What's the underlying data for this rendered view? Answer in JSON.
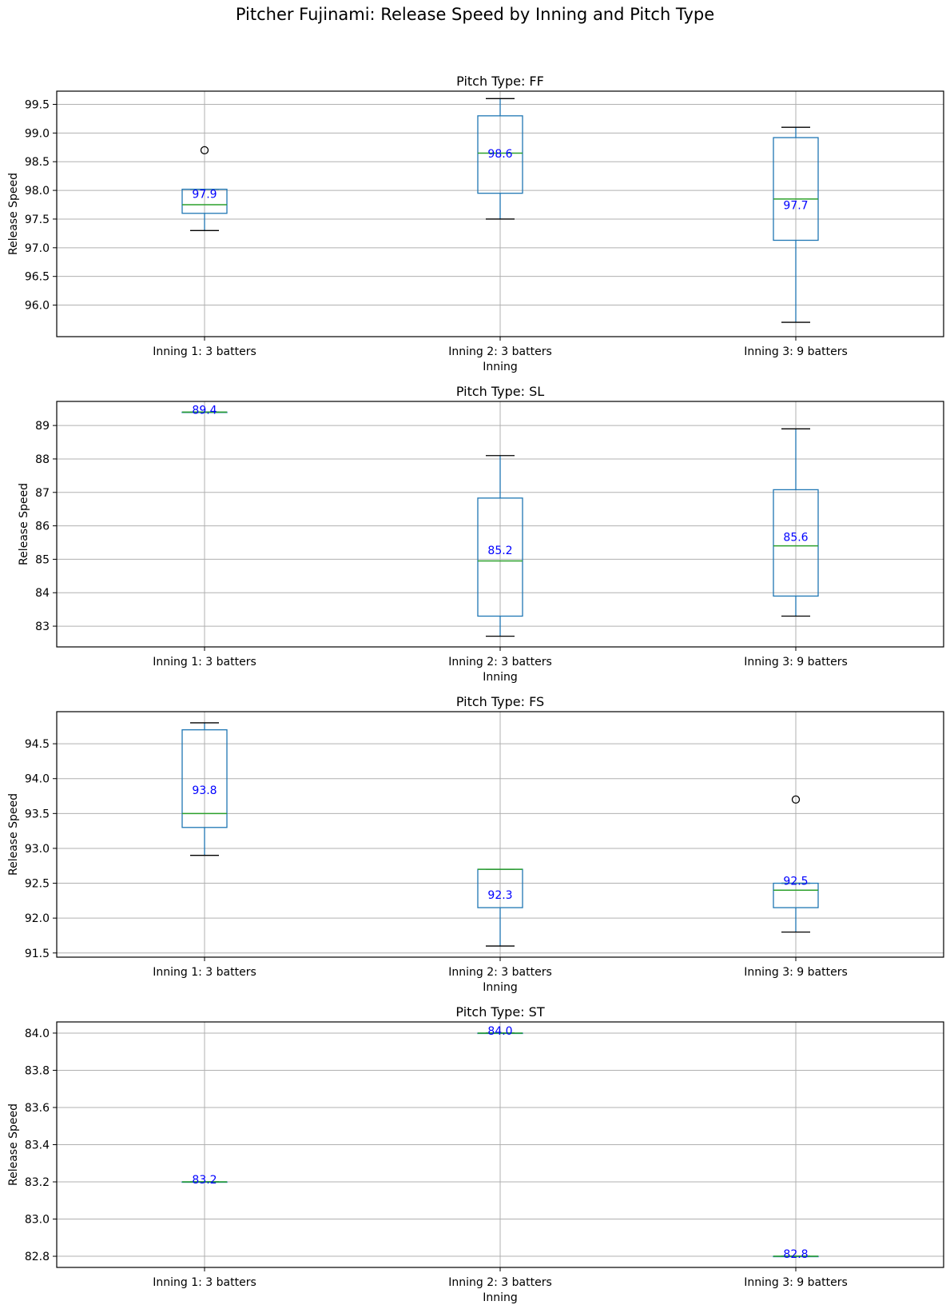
{
  "chart_data": {
    "title": "Pitcher Fujinami: Release Speed by Inning and Pitch Type",
    "type": "boxplot",
    "subplots": [
      {
        "title": "Pitch Type: FF",
        "xlabel": "Inning",
        "ylabel": "Release Speed",
        "ylim": [
          95.45,
          99.73
        ],
        "yticks": [
          96.0,
          96.5,
          97.0,
          97.5,
          98.0,
          98.5,
          99.0,
          99.5
        ],
        "ytick_labels": [
          "96.0",
          "96.5",
          "97.0",
          "97.5",
          "98.0",
          "98.5",
          "99.0",
          "99.5"
        ],
        "categories": [
          "Inning 1: 3 batters",
          "Inning 2: 3 batters",
          "Inning 3: 9 batters"
        ],
        "boxes": [
          {
            "whisker_low": 97.3,
            "q1": 97.6,
            "median": 97.75,
            "q3": 98.02,
            "whisker_high": 98.02,
            "outliers": [
              98.7
            ],
            "mean_label": "97.9",
            "mean": 97.9
          },
          {
            "whisker_low": 97.5,
            "q1": 97.95,
            "median": 98.65,
            "q3": 99.3,
            "whisker_high": 99.6,
            "outliers": [],
            "mean_label": "98.6",
            "mean": 98.6
          },
          {
            "whisker_low": 95.7,
            "q1": 97.13,
            "median": 97.85,
            "q3": 98.92,
            "whisker_high": 99.1,
            "outliers": [],
            "mean_label": "97.7",
            "mean": 97.7
          }
        ]
      },
      {
        "title": "Pitch Type: SL",
        "xlabel": "Inning",
        "ylabel": "Release Speed",
        "ylim": [
          82.38,
          89.72
        ],
        "yticks": [
          83,
          84,
          85,
          86,
          87,
          88,
          89
        ],
        "ytick_labels": [
          "83",
          "84",
          "85",
          "86",
          "87",
          "88",
          "89"
        ],
        "categories": [
          "Inning 1: 3 batters",
          "Inning 2: 3 batters",
          "Inning 3: 9 batters"
        ],
        "boxes": [
          {
            "whisker_low": 89.4,
            "q1": 89.4,
            "median": 89.4,
            "q3": 89.4,
            "whisker_high": 89.4,
            "outliers": [],
            "mean_label": "89.4",
            "mean": 89.4
          },
          {
            "whisker_low": 82.7,
            "q1": 83.3,
            "median": 84.95,
            "q3": 86.83,
            "whisker_high": 88.1,
            "outliers": [],
            "mean_label": "85.2",
            "mean": 85.2
          },
          {
            "whisker_low": 83.3,
            "q1": 83.9,
            "median": 85.4,
            "q3": 87.08,
            "whisker_high": 88.9,
            "outliers": [],
            "mean_label": "85.6",
            "mean": 85.6
          }
        ]
      },
      {
        "title": "Pitch Type: FS",
        "xlabel": "Inning",
        "ylabel": "Release Speed",
        "ylim": [
          91.44,
          94.96
        ],
        "yticks": [
          91.5,
          92.0,
          92.5,
          93.0,
          93.5,
          94.0,
          94.5
        ],
        "ytick_labels": [
          "91.5",
          "92.0",
          "92.5",
          "93.0",
          "93.5",
          "94.0",
          "94.5"
        ],
        "categories": [
          "Inning 1: 3 batters",
          "Inning 2: 3 batters",
          "Inning 3: 9 batters"
        ],
        "boxes": [
          {
            "whisker_low": 92.9,
            "q1": 93.3,
            "median": 93.5,
            "q3": 94.7,
            "whisker_high": 94.8,
            "outliers": [],
            "mean_label": "93.8",
            "mean": 93.8
          },
          {
            "whisker_low": 91.6,
            "q1": 92.15,
            "median": 92.7,
            "q3": 92.7,
            "whisker_high": 92.7,
            "outliers": [],
            "mean_label": "92.3",
            "mean": 92.3
          },
          {
            "whisker_low": 91.8,
            "q1": 92.15,
            "median": 92.4,
            "q3": 92.5,
            "whisker_high": 92.5,
            "outliers": [
              93.7
            ],
            "mean_label": "92.5",
            "mean": 92.5
          }
        ]
      },
      {
        "title": "Pitch Type: ST",
        "xlabel": "Inning",
        "ylabel": "Release Speed",
        "ylim": [
          82.74,
          84.06
        ],
        "yticks": [
          82.8,
          83.0,
          83.2,
          83.4,
          83.6,
          83.8,
          84.0
        ],
        "ytick_labels": [
          "82.8",
          "83.0",
          "83.2",
          "83.4",
          "83.6",
          "83.8",
          "84.0"
        ],
        "categories": [
          "Inning 1: 3 batters",
          "Inning 2: 3 batters",
          "Inning 3: 9 batters"
        ],
        "boxes": [
          {
            "whisker_low": 83.2,
            "q1": 83.2,
            "median": 83.2,
            "q3": 83.2,
            "whisker_high": 83.2,
            "outliers": [],
            "mean_label": "83.2",
            "mean": 83.2
          },
          {
            "whisker_low": 84.0,
            "q1": 84.0,
            "median": 84.0,
            "q3": 84.0,
            "whisker_high": 84.0,
            "outliers": [],
            "mean_label": "84.0",
            "mean": 84.0
          },
          {
            "whisker_low": 82.8,
            "q1": 82.8,
            "median": 82.8,
            "q3": 82.8,
            "whisker_high": 82.8,
            "outliers": [],
            "mean_label": "82.8",
            "mean": 82.8
          }
        ]
      }
    ],
    "grid": true,
    "colors": {
      "box": "#1f77b4",
      "median": "#2ca02c",
      "whisker_cap": "#000000",
      "annotation": "#0000ff",
      "grid": "#b0b0b0"
    }
  }
}
